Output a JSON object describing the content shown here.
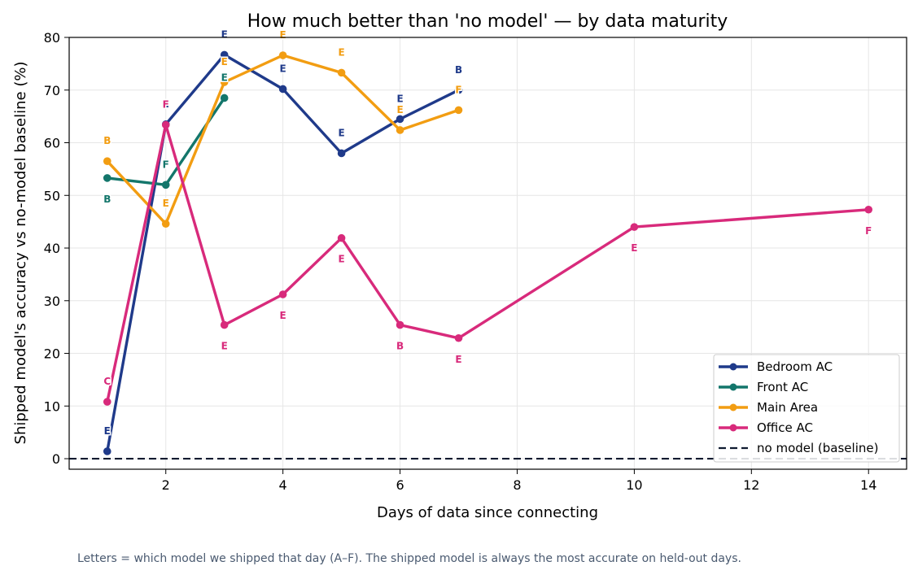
{
  "chart_data": {
    "type": "line",
    "title": "How much better than 'no model' — by data maturity",
    "xlabel": "Days of data since connecting",
    "ylabel": "Shipped model's accuracy vs no-model baseline (%)",
    "xlim": [
      0.35,
      14.65
    ],
    "ylim": [
      -2,
      80
    ],
    "xticks": [
      2,
      4,
      6,
      8,
      10,
      12,
      14
    ],
    "yticks": [
      0,
      10,
      20,
      30,
      40,
      50,
      60,
      70,
      80
    ],
    "grid": true,
    "legend_position": "lower-right",
    "series": [
      {
        "name": "Bedroom AC",
        "color": "#1f3a8a",
        "points": [
          {
            "x": 1,
            "y": 1.4,
            "label": "E"
          },
          {
            "x": 2,
            "y": 63.5,
            "label": "E"
          },
          {
            "x": 3,
            "y": 76.7,
            "label": "E"
          },
          {
            "x": 4,
            "y": 70.2,
            "label": "E"
          },
          {
            "x": 5,
            "y": 58.0,
            "label": "E"
          },
          {
            "x": 6,
            "y": 64.5,
            "label": "E"
          },
          {
            "x": 7,
            "y": 70.0,
            "label": "B"
          }
        ]
      },
      {
        "name": "Front AC",
        "color": "#13766b",
        "points": [
          {
            "x": 1,
            "y": 53.3,
            "label": "B"
          },
          {
            "x": 2,
            "y": 52.0,
            "label": "F"
          },
          {
            "x": 3,
            "y": 68.5,
            "label": "E"
          }
        ]
      },
      {
        "name": "Main Area",
        "color": "#f29d12",
        "points": [
          {
            "x": 1,
            "y": 56.5,
            "label": "B"
          },
          {
            "x": 2,
            "y": 44.6,
            "label": "E"
          },
          {
            "x": 3,
            "y": 71.5,
            "label": "E"
          },
          {
            "x": 4,
            "y": 76.6,
            "label": "E"
          },
          {
            "x": 5,
            "y": 73.3,
            "label": "E"
          },
          {
            "x": 6,
            "y": 62.4,
            "label": "E"
          },
          {
            "x": 7,
            "y": 66.2,
            "label": "F"
          }
        ]
      },
      {
        "name": "Office AC",
        "color": "#d82a7b",
        "points": [
          {
            "x": 1,
            "y": 10.8,
            "label": "C"
          },
          {
            "x": 2,
            "y": 63.4,
            "label": "F"
          },
          {
            "x": 3,
            "y": 25.4,
            "label": "E"
          },
          {
            "x": 4,
            "y": 31.2,
            "label": "E"
          },
          {
            "x": 5,
            "y": 41.9,
            "label": "E"
          },
          {
            "x": 6,
            "y": 25.4,
            "label": "B"
          },
          {
            "x": 7,
            "y": 22.9,
            "label": "E"
          },
          {
            "x": 10,
            "y": 44.0,
            "label": "E"
          },
          {
            "x": 14,
            "y": 47.3,
            "label": "F"
          }
        ]
      }
    ],
    "baseline": {
      "name": "no model (baseline)",
      "y": 0,
      "color": "#0f1b30"
    }
  },
  "footnote": "Letters = which model we shipped that day (A–F). The shipped model is always the most accurate on held-out days."
}
